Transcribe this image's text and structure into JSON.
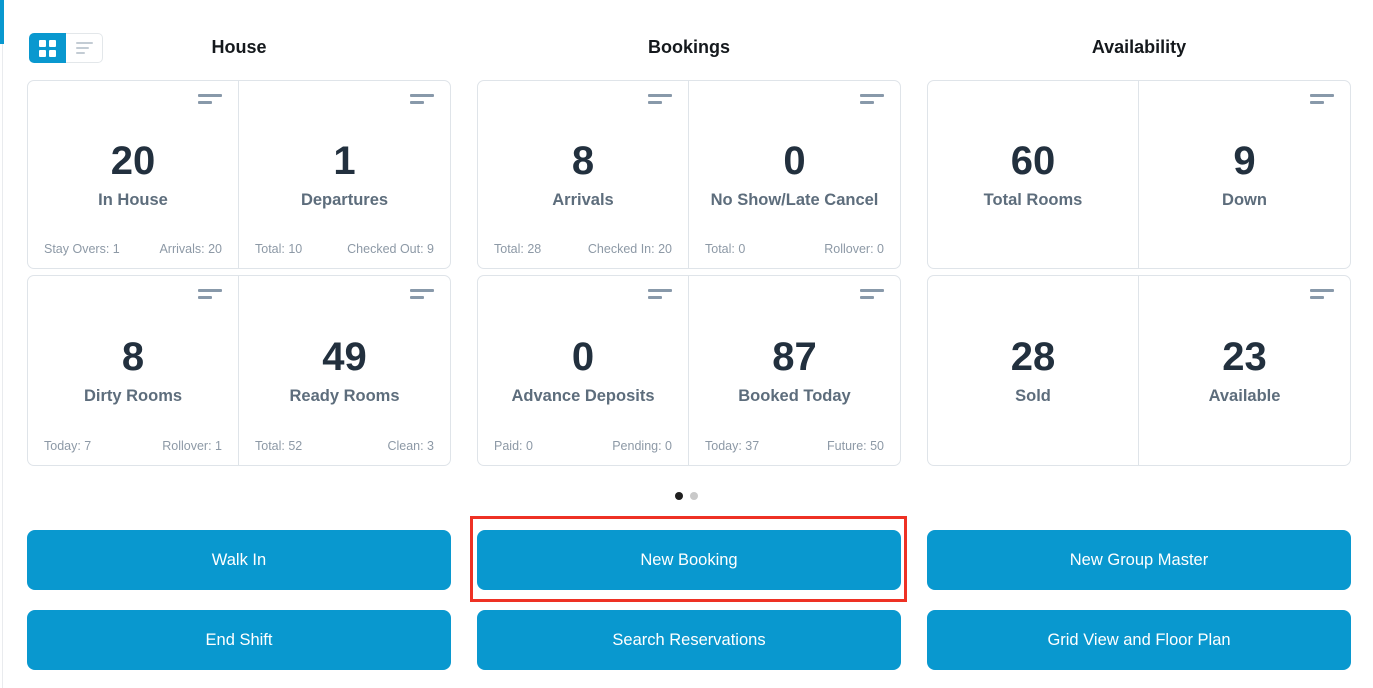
{
  "colors": {
    "accent_blue": "#0998cf",
    "highlight_red": "#ee3124",
    "number_dark": "#22303e",
    "label_gray": "#5d6d7c",
    "footer_gray": "#8d99a6",
    "border_gray": "#dfe4e9"
  },
  "icons": {
    "grid_view": "grid-icon",
    "list_view": "list-lines-icon",
    "card_menu": "menu-bars-icon"
  },
  "sections": [
    {
      "title": "House",
      "cards": [
        {
          "value": "20",
          "label": "In House",
          "footer_left": "Stay Overs: 1",
          "footer_right": "Arrivals: 20"
        },
        {
          "value": "1",
          "label": "Departures",
          "footer_left": "Total: 10",
          "footer_right": "Checked Out: 9"
        },
        {
          "value": "8",
          "label": "Dirty Rooms",
          "footer_left": "Today: 7",
          "footer_right": "Rollover: 1"
        },
        {
          "value": "49",
          "label": "Ready Rooms",
          "footer_left": "Total: 52",
          "footer_right": "Clean: 3"
        }
      ]
    },
    {
      "title": "Bookings",
      "cards": [
        {
          "value": "8",
          "label": "Arrivals",
          "footer_left": "Total: 28",
          "footer_right": "Checked In: 20"
        },
        {
          "value": "0",
          "label": "No Show/Late Cancel",
          "footer_left": "Total: 0",
          "footer_right": "Rollover: 0"
        },
        {
          "value": "0",
          "label": "Advance Deposits",
          "footer_left": "Paid: 0",
          "footer_right": "Pending: 0"
        },
        {
          "value": "87",
          "label": "Booked Today",
          "footer_left": "Today: 37",
          "footer_right": "Future: 50"
        }
      ]
    },
    {
      "title": "Availability",
      "cards": [
        {
          "value": "60",
          "label": "Total Rooms"
        },
        {
          "value": "9",
          "label": "Down"
        },
        {
          "value": "28",
          "label": "Sold"
        },
        {
          "value": "23",
          "label": "Available"
        }
      ]
    }
  ],
  "pagination": {
    "dot_count": 2,
    "active_index": 0
  },
  "actions": [
    {
      "label": "Walk In"
    },
    {
      "label": "New Booking",
      "highlighted": true
    },
    {
      "label": "New Group Master"
    },
    {
      "label": "End Shift"
    },
    {
      "label": "Search Reservations"
    },
    {
      "label": "Grid View and Floor Plan"
    }
  ]
}
